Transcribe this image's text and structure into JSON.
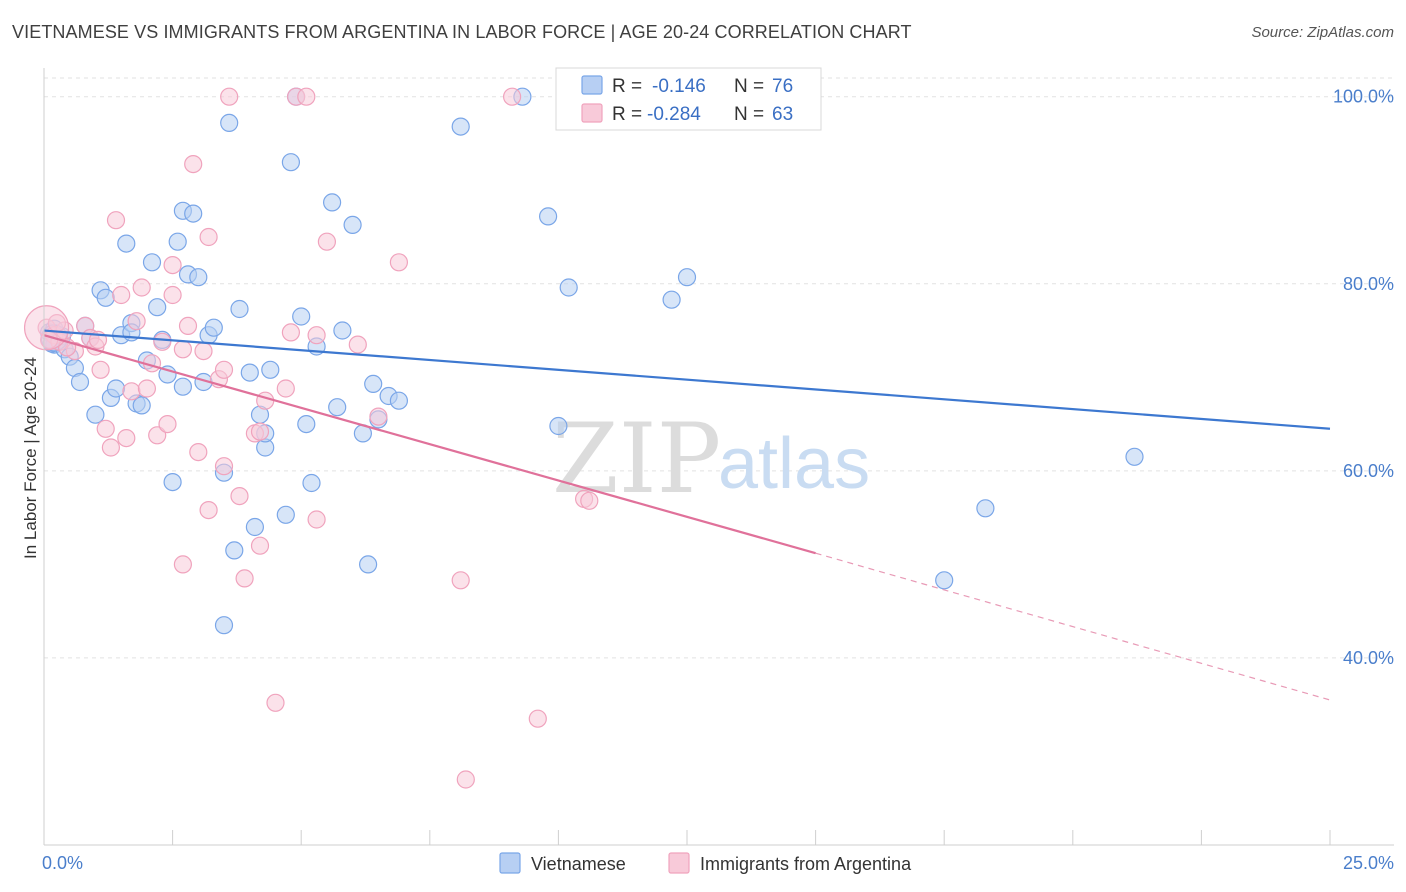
{
  "header": {
    "title": "VIETNAMESE VS IMMIGRANTS FROM ARGENTINA IN LABOR FORCE | AGE 20-24 CORRELATION CHART",
    "source": "Source: ZipAtlas.com"
  },
  "watermark": {
    "zip": "ZIP",
    "atlas": "atlas"
  },
  "legend_top": [
    {
      "r_label": "R =",
      "r_value": "-0.146",
      "n_label": "N =",
      "n_value": "76"
    },
    {
      "r_label": "R =",
      "r_value": "-0.284",
      "n_label": "N =",
      "n_value": "63"
    }
  ],
  "chart_data": {
    "type": "scatter",
    "ylabel": "In Labor Force | Age 20-24",
    "xlim": [
      0,
      25
    ],
    "ylim": [
      20,
      102
    ],
    "x_tick_labels": [
      "0.0%",
      "25.0%"
    ],
    "y_ticks": [
      40,
      60,
      80,
      100
    ],
    "y_tick_labels": [
      "40.0%",
      "60.0%",
      "80.0%",
      "100.0%"
    ],
    "grid": true,
    "legend_position": "bottom",
    "series": [
      {
        "name": "Vietnamese",
        "color": "#7aa6e8",
        "fill": "#b7cff3",
        "trend": {
          "x": [
            0,
            25
          ],
          "y": [
            75.0,
            64.5
          ]
        },
        "points": [
          [
            0.1,
            74.8
          ],
          [
            0.2,
            75.2
          ],
          [
            0.2,
            73.5
          ],
          [
            0.3,
            74.0
          ],
          [
            0.4,
            73.0
          ],
          [
            0.5,
            72.2
          ],
          [
            0.6,
            71.0
          ],
          [
            0.7,
            69.5
          ],
          [
            0.8,
            75.5
          ],
          [
            0.9,
            74.2
          ],
          [
            1.0,
            66.0
          ],
          [
            1.1,
            79.3
          ],
          [
            1.2,
            78.5
          ],
          [
            1.3,
            67.8
          ],
          [
            1.4,
            68.8
          ],
          [
            1.5,
            74.5
          ],
          [
            1.6,
            84.3
          ],
          [
            1.7,
            75.8
          ],
          [
            1.7,
            74.8
          ],
          [
            1.8,
            67.2
          ],
          [
            1.9,
            67.0
          ],
          [
            2.0,
            71.8
          ],
          [
            2.1,
            82.3
          ],
          [
            2.2,
            77.5
          ],
          [
            2.3,
            74.0
          ],
          [
            2.4,
            70.3
          ],
          [
            2.5,
            58.8
          ],
          [
            2.6,
            84.5
          ],
          [
            2.7,
            87.8
          ],
          [
            2.7,
            69.0
          ],
          [
            2.8,
            81.0
          ],
          [
            2.9,
            87.5
          ],
          [
            3.0,
            80.7
          ],
          [
            3.1,
            69.5
          ],
          [
            3.2,
            74.5
          ],
          [
            3.3,
            75.3
          ],
          [
            3.5,
            59.8
          ],
          [
            3.6,
            97.2
          ],
          [
            3.7,
            51.5
          ],
          [
            3.8,
            77.3
          ],
          [
            3.5,
            43.5
          ],
          [
            4.0,
            70.5
          ],
          [
            4.1,
            54.0
          ],
          [
            4.2,
            66.0
          ],
          [
            4.3,
            62.5
          ],
          [
            4.3,
            64.0
          ],
          [
            4.4,
            70.8
          ],
          [
            4.7,
            55.3
          ],
          [
            4.8,
            93.0
          ],
          [
            4.9,
            100.0
          ],
          [
            5.0,
            76.5
          ],
          [
            5.1,
            65.0
          ],
          [
            5.2,
            58.7
          ],
          [
            5.3,
            73.3
          ],
          [
            5.6,
            88.7
          ],
          [
            5.7,
            66.8
          ],
          [
            5.8,
            75.0
          ],
          [
            6.0,
            86.3
          ],
          [
            6.2,
            64.0
          ],
          [
            6.3,
            50.0
          ],
          [
            6.4,
            69.3
          ],
          [
            6.5,
            65.5
          ],
          [
            6.7,
            68.0
          ],
          [
            6.9,
            67.5
          ],
          [
            8.1,
            96.8
          ],
          [
            9.3,
            100.0
          ],
          [
            9.8,
            87.2
          ],
          [
            10.0,
            64.8
          ],
          [
            10.2,
            79.6
          ],
          [
            12.2,
            78.3
          ],
          [
            12.5,
            80.7
          ],
          [
            17.5,
            48.3
          ],
          [
            18.3,
            56.0
          ],
          [
            21.2,
            61.5
          ],
          [
            0.15,
            73.6
          ],
          [
            0.35,
            74.4
          ]
        ]
      },
      {
        "name": "Immigrants from Argentina",
        "color": "#f0a3bd",
        "fill": "#f8cad9",
        "trend": {
          "x": [
            0,
            15
          ],
          "y": [
            74.5,
            51.2
          ]
        },
        "trend_dashed": {
          "x": [
            15,
            25
          ],
          "y": [
            51.2,
            35.5
          ]
        },
        "points": [
          [
            0.05,
            75.3
          ],
          [
            0.2,
            74.5
          ],
          [
            0.3,
            73.8
          ],
          [
            0.4,
            75.0
          ],
          [
            0.6,
            72.8
          ],
          [
            0.8,
            75.5
          ],
          [
            0.9,
            74.2
          ],
          [
            1.0,
            73.3
          ],
          [
            1.1,
            70.8
          ],
          [
            1.2,
            64.5
          ],
          [
            1.3,
            62.5
          ],
          [
            1.4,
            86.8
          ],
          [
            1.5,
            78.8
          ],
          [
            1.6,
            63.5
          ],
          [
            1.7,
            68.5
          ],
          [
            1.8,
            76.0
          ],
          [
            1.9,
            79.6
          ],
          [
            2.0,
            68.8
          ],
          [
            2.1,
            71.5
          ],
          [
            2.2,
            63.8
          ],
          [
            2.3,
            73.8
          ],
          [
            2.4,
            65.0
          ],
          [
            2.5,
            82.0
          ],
          [
            2.5,
            78.8
          ],
          [
            2.7,
            73.0
          ],
          [
            2.7,
            50.0
          ],
          [
            2.8,
            75.5
          ],
          [
            2.9,
            92.8
          ],
          [
            3.0,
            62.0
          ],
          [
            3.1,
            72.8
          ],
          [
            3.2,
            85.0
          ],
          [
            3.2,
            55.8
          ],
          [
            3.4,
            69.8
          ],
          [
            3.5,
            70.8
          ],
          [
            3.5,
            60.5
          ],
          [
            3.6,
            100.0
          ],
          [
            3.8,
            57.3
          ],
          [
            3.9,
            48.5
          ],
          [
            4.1,
            64.0
          ],
          [
            4.2,
            52.0
          ],
          [
            4.3,
            67.5
          ],
          [
            4.5,
            35.2
          ],
          [
            4.7,
            68.8
          ],
          [
            4.8,
            74.8
          ],
          [
            4.9,
            100.0
          ],
          [
            5.1,
            100.0
          ],
          [
            5.3,
            74.5
          ],
          [
            5.3,
            54.8
          ],
          [
            5.5,
            84.5
          ],
          [
            6.1,
            73.5
          ],
          [
            6.5,
            65.8
          ],
          [
            6.9,
            82.3
          ],
          [
            8.1,
            48.3
          ],
          [
            8.2,
            27.0
          ],
          [
            9.1,
            100.0
          ],
          [
            9.6,
            33.5
          ],
          [
            10.5,
            57.0
          ],
          [
            10.6,
            56.8
          ],
          [
            0.1,
            74.0
          ],
          [
            0.25,
            75.8
          ],
          [
            0.45,
            73.2
          ],
          [
            1.05,
            74.0
          ],
          [
            4.2,
            64.2
          ]
        ]
      }
    ]
  }
}
